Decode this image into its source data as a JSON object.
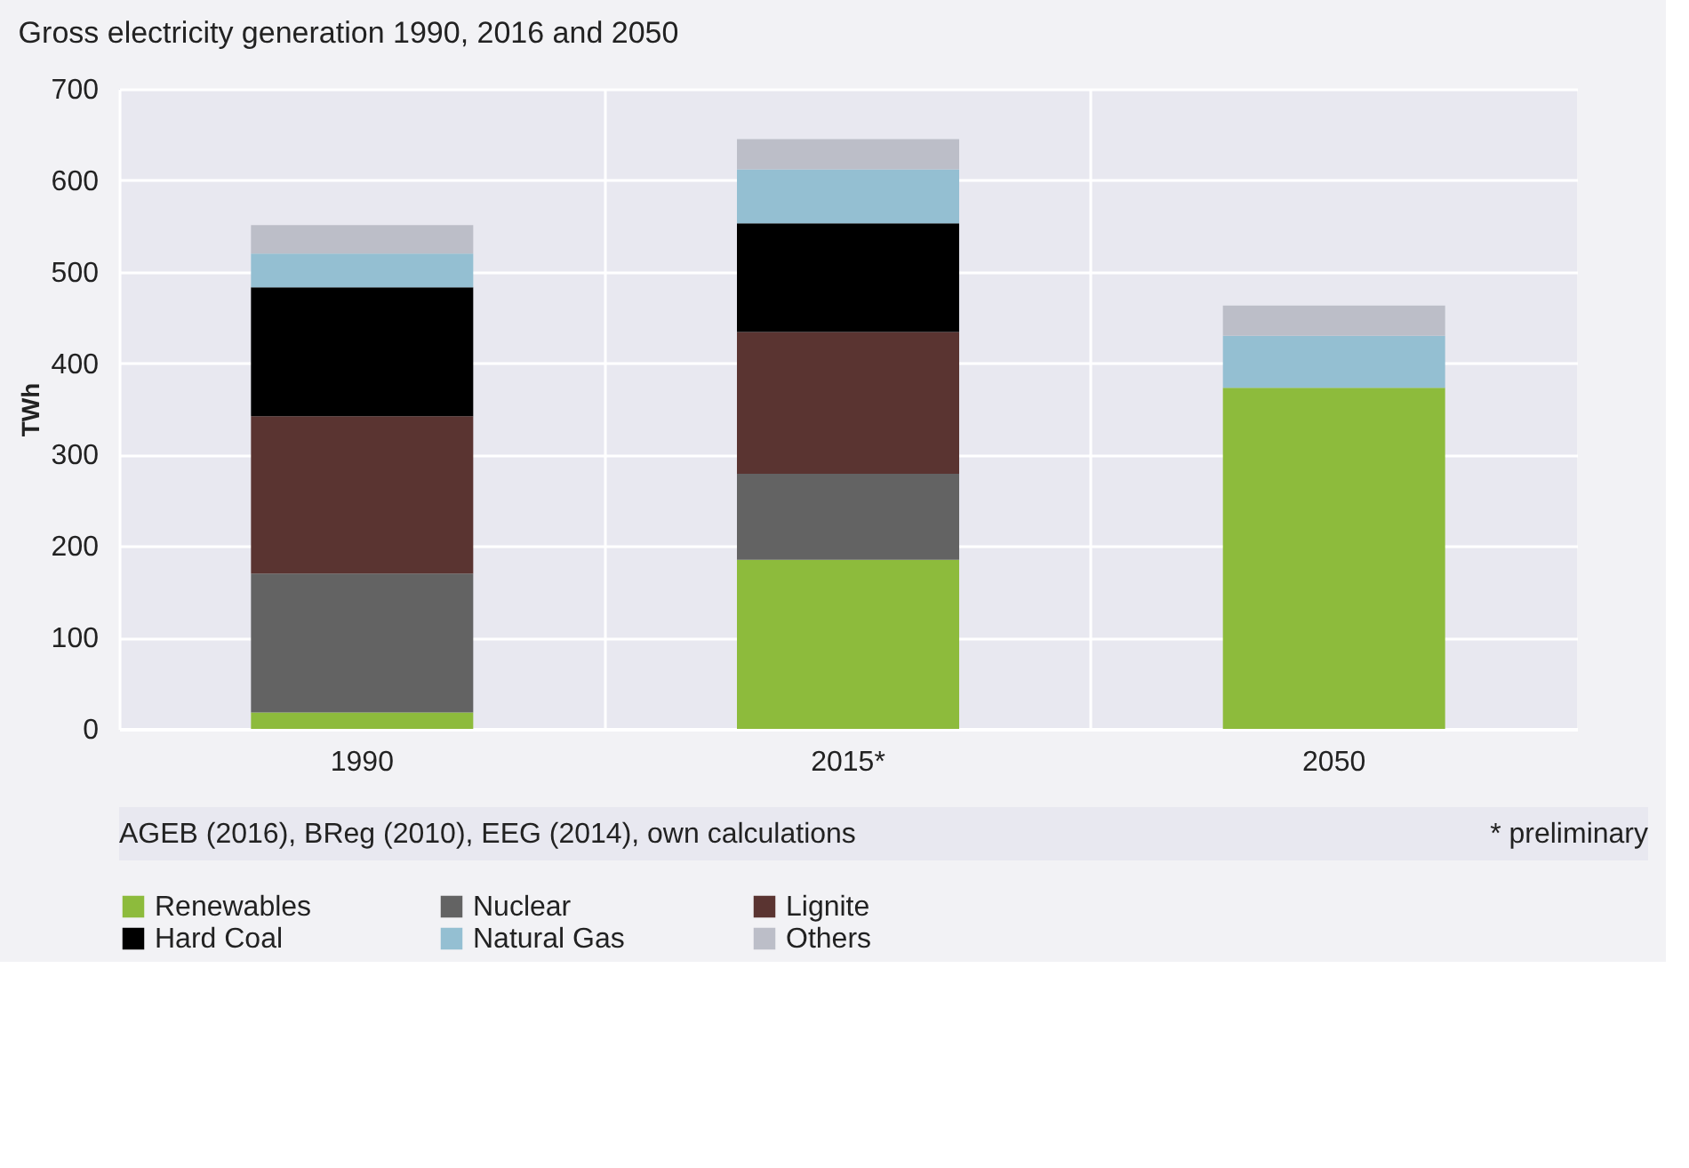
{
  "chart_data": {
    "type": "bar",
    "title": "Gross electricity generation 1990, 2016 and 2050",
    "ylabel": "TWh",
    "categories": [
      "1990",
      "2015*",
      "2050"
    ],
    "stacked": true,
    "series": [
      {
        "name": "Renewables",
        "color": "#8dbb3c",
        "values": [
          18,
          185,
          373
        ]
      },
      {
        "name": "Nuclear",
        "color": "#636363",
        "values": [
          152,
          94,
          0
        ]
      },
      {
        "name": "Lignite",
        "color": "#5a3431",
        "values": [
          172,
          155,
          0
        ]
      },
      {
        "name": "Hard Coal",
        "color": "#000000",
        "values": [
          141,
          119,
          0
        ]
      },
      {
        "name": "Natural Gas",
        "color": "#94bfd2",
        "values": [
          37,
          59,
          57
        ]
      },
      {
        "name": "Others",
        "color": "#bcbec8",
        "values": [
          31,
          33,
          33
        ]
      }
    ],
    "ylim": [
      0,
      700
    ],
    "yticks": [
      0,
      100,
      200,
      300,
      400,
      500,
      600,
      700
    ],
    "grid": true,
    "legend": "bottom",
    "annotations": [
      "AGEB (2016), BReg (2010), EEG (2014), own calculations",
      "* preliminary"
    ]
  }
}
